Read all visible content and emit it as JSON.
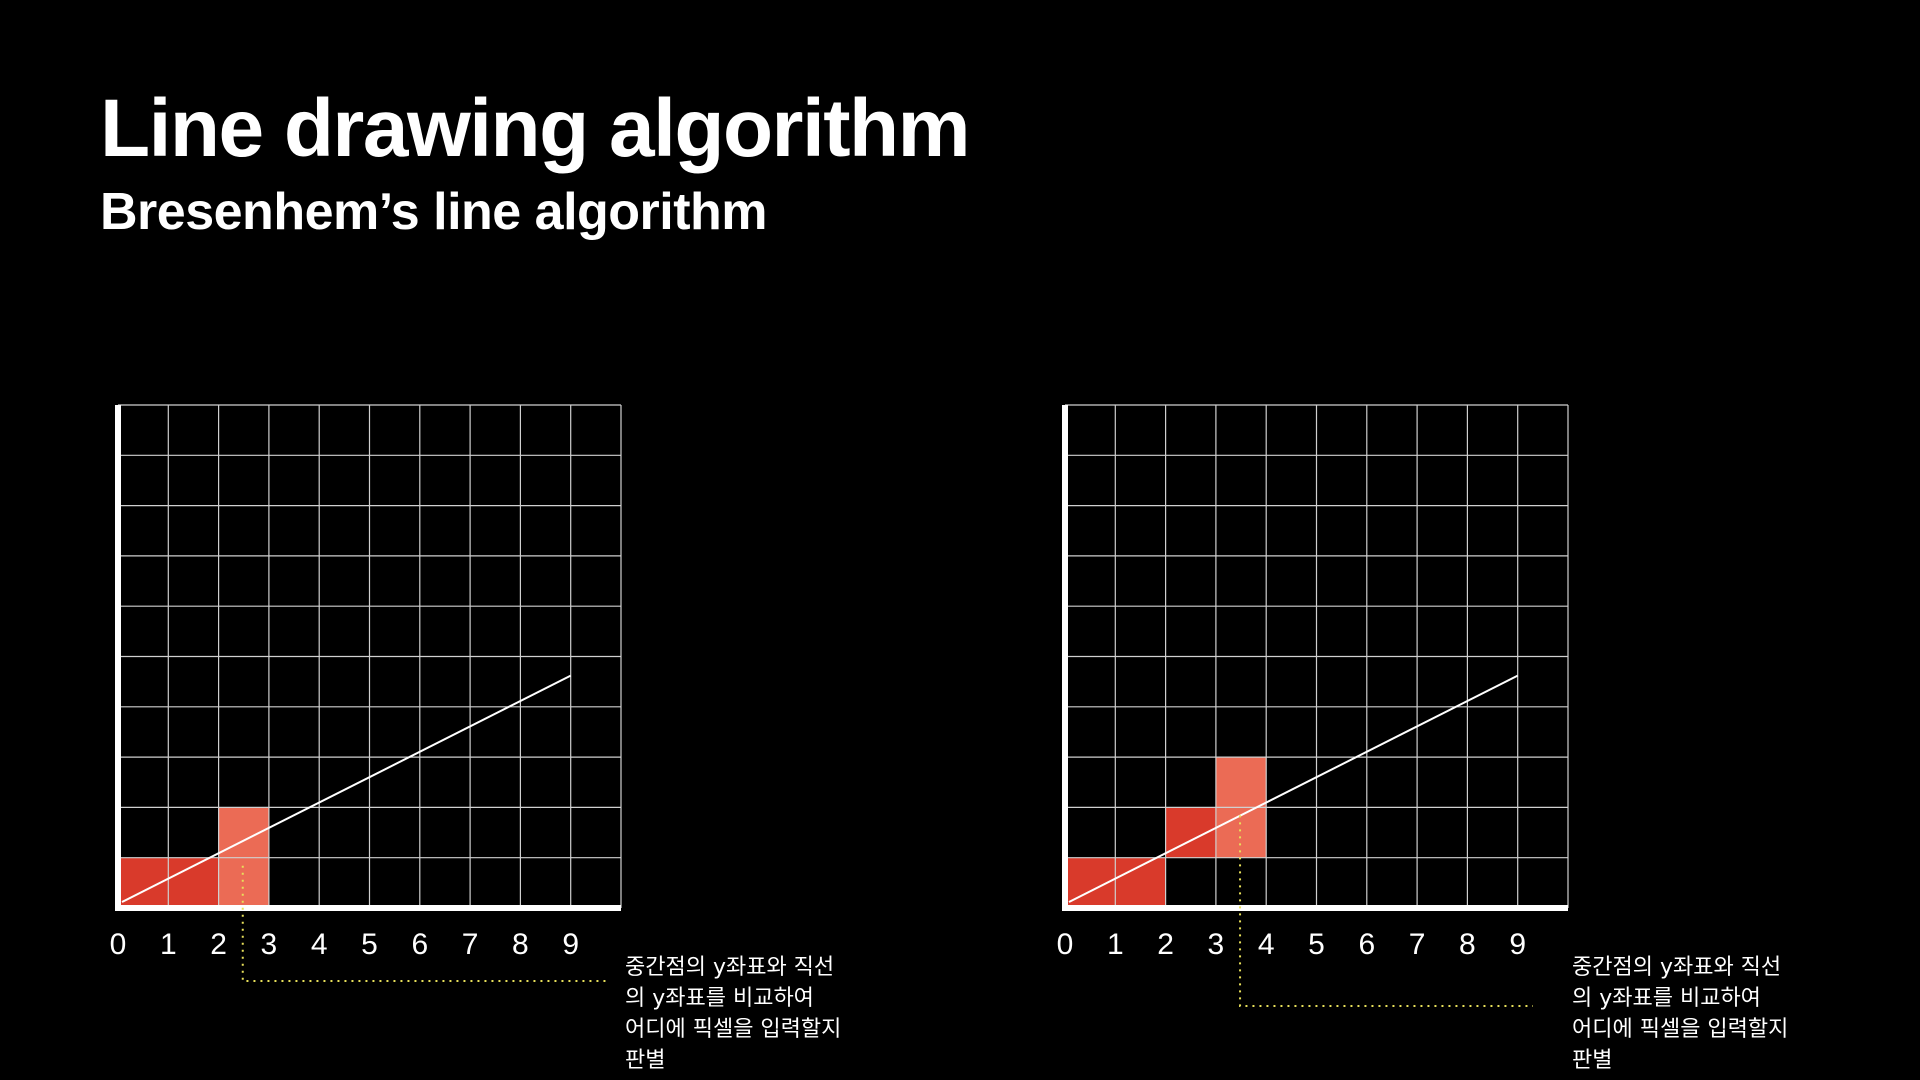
{
  "slide": {
    "title": "Line drawing algorithm",
    "subtitle": "Bresenhem’s line algorithm"
  },
  "colors": {
    "background": "#000000",
    "grid": "#d0d0d0",
    "pixel_filled": "#d93a2b",
    "pixel_candidate": "#eb6b55",
    "guide_dotted": "#e8e05a"
  },
  "diagrams": [
    {
      "x_tick_labels": [
        "0",
        "1",
        "2",
        "3",
        "4",
        "5",
        "6",
        "7",
        "8",
        "9"
      ],
      "line": {
        "from": [
          0,
          0
        ],
        "to": [
          9,
          4.5
        ]
      },
      "filled_pixels": [
        [
          0,
          0
        ],
        [
          1,
          0
        ]
      ],
      "candidate_pixels": [
        [
          2,
          0
        ],
        [
          2,
          1
        ]
      ],
      "note": "중간점의  y좌표와  직선\n의 y좌표를 비교하여\n어디에  픽셀을  입력할지\n판별"
    },
    {
      "x_tick_labels": [
        "0",
        "1",
        "2",
        "3",
        "4",
        "5",
        "6",
        "7",
        "8",
        "9"
      ],
      "line": {
        "from": [
          0,
          0
        ],
        "to": [
          9,
          4.5
        ]
      },
      "filled_pixels": [
        [
          0,
          0
        ],
        [
          1,
          0
        ],
        [
          2,
          1
        ]
      ],
      "candidate_pixels": [
        [
          3,
          1
        ],
        [
          3,
          2
        ]
      ],
      "note": "중간점의  y좌표와  직선\n의 y좌표를 비교하여\n어디에  픽셀을  입력할지\n판별"
    }
  ]
}
